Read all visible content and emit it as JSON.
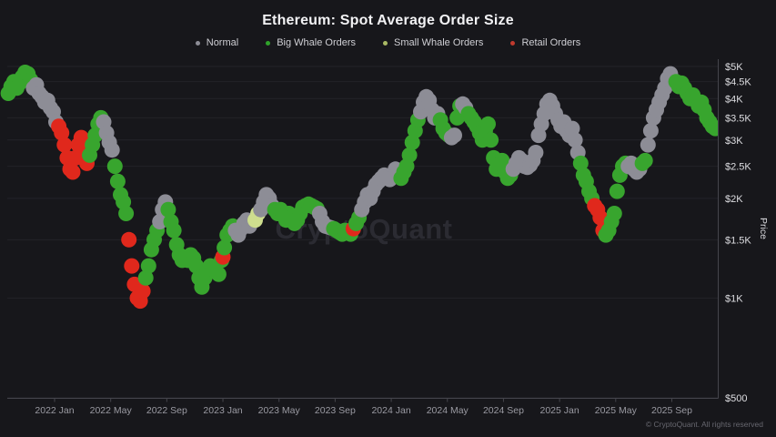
{
  "title": "Ethereum: Spot Average Order Size",
  "watermark": "CryptoQuant",
  "copyright": "© CryptoQuant. All rights reserved",
  "legend": [
    {
      "label": "Normal",
      "color": "#8d8d96"
    },
    {
      "label": "Big Whale Orders",
      "color": "#2fa32a"
    },
    {
      "label": "Small Whale Orders",
      "color": "#a9b964"
    },
    {
      "label": "Retail Orders",
      "color": "#c03a2e"
    }
  ],
  "colors": {
    "background": "#17171b",
    "grid": "#232329",
    "axis": "#45454c",
    "x_tick_text": "#9a9aa2",
    "y_tick_text": "#dedee2",
    "watermark": "#2b2b32"
  },
  "chart_data": {
    "type": "scatter",
    "title": "Ethereum: Spot Average Order Size",
    "x_unit": "months since 2022-01 (0 = Jan 2022)",
    "xlim": [
      -3.5,
      47.5
    ],
    "ylim": [
      500,
      5000
    ],
    "y_scale": "log",
    "grid": "horizontal-only",
    "legend_position": "top-center",
    "x_axis": {
      "ticks": [
        {
          "label": "2022 Jan",
          "t": 0
        },
        {
          "label": "2022 May",
          "t": 4
        },
        {
          "label": "2022 Sep",
          "t": 8
        },
        {
          "label": "2023 Jan",
          "t": 12
        },
        {
          "label": "2023 May",
          "t": 16
        },
        {
          "label": "2023 Sep",
          "t": 20
        },
        {
          "label": "2024 Jan",
          "t": 24
        },
        {
          "label": "2024 May",
          "t": 28
        },
        {
          "label": "2024 Sep",
          "t": 32
        },
        {
          "label": "2025 Jan",
          "t": 36
        },
        {
          "label": "2025 May",
          "t": 40
        },
        {
          "label": "2025 Sep",
          "t": 44
        }
      ]
    },
    "y_axis": {
      "label": "Price",
      "ticks": [
        {
          "label": "$5K",
          "value": 5000
        },
        {
          "label": "$4.5K",
          "value": 4500
        },
        {
          "label": "$4K",
          "value": 4000
        },
        {
          "label": "$3.5K",
          "value": 3500
        },
        {
          "label": "$3K",
          "value": 3000
        },
        {
          "label": "$2.5K",
          "value": 2500
        },
        {
          "label": "$2K",
          "value": 2000
        },
        {
          "label": "$1.5K",
          "value": 1500
        },
        {
          "label": "$1K",
          "value": 1000
        },
        {
          "label": "$500",
          "value": 500
        }
      ]
    },
    "categories": {
      "n": "Normal",
      "b": "Big Whale Orders",
      "s": "Small Whale Orders",
      "r": "Retail Orders"
    },
    "point_colors": {
      "n": "#8d8d96",
      "b": "#38a52e",
      "s": "#cede8e",
      "r": "#e0281c"
    },
    "point_radius": 8.5,
    "points": [
      [
        -3.3,
        4150,
        "b"
      ],
      [
        -3.1,
        4350,
        "b"
      ],
      [
        -2.9,
        4500,
        "b"
      ],
      [
        -2.7,
        4300,
        "b"
      ],
      [
        -2.5,
        4450,
        "b"
      ],
      [
        -2.3,
        4650,
        "b"
      ],
      [
        -2.1,
        4800,
        "b"
      ],
      [
        -1.9,
        4750,
        "b"
      ],
      [
        -1.7,
        4550,
        "b"
      ],
      [
        -1.5,
        4300,
        "n"
      ],
      [
        -1.3,
        4400,
        "n"
      ],
      [
        -1.1,
        4150,
        "n"
      ],
      [
        -0.9,
        4050,
        "n"
      ],
      [
        -0.7,
        3900,
        "n"
      ],
      [
        -0.5,
        3950,
        "n"
      ],
      [
        -0.3,
        3750,
        "n"
      ],
      [
        -0.1,
        3650,
        "n"
      ],
      [
        0.1,
        3400,
        "n"
      ],
      [
        0.3,
        3300,
        "r"
      ],
      [
        0.5,
        3150,
        "r"
      ],
      [
        0.7,
        2900,
        "r"
      ],
      [
        0.9,
        2650,
        "r"
      ],
      [
        1.1,
        2450,
        "r"
      ],
      [
        1.3,
        2400,
        "r"
      ],
      [
        1.5,
        2650,
        "r"
      ],
      [
        1.7,
        2900,
        "r"
      ],
      [
        1.9,
        3050,
        "r"
      ],
      [
        2.1,
        2750,
        "r"
      ],
      [
        2.3,
        2550,
        "r"
      ],
      [
        2.5,
        2700,
        "b"
      ],
      [
        2.7,
        2900,
        "b"
      ],
      [
        2.9,
        3100,
        "b"
      ],
      [
        3.1,
        3350,
        "b"
      ],
      [
        3.3,
        3500,
        "b"
      ],
      [
        3.5,
        3400,
        "n"
      ],
      [
        3.7,
        3150,
        "n"
      ],
      [
        3.9,
        2950,
        "n"
      ],
      [
        4.1,
        2800,
        "n"
      ],
      [
        4.3,
        2500,
        "b"
      ],
      [
        4.5,
        2250,
        "b"
      ],
      [
        4.7,
        2050,
        "b"
      ],
      [
        4.9,
        1950,
        "b"
      ],
      [
        5.1,
        1800,
        "b"
      ],
      [
        5.3,
        1500,
        "r"
      ],
      [
        5.5,
        1250,
        "r"
      ],
      [
        5.7,
        1100,
        "r"
      ],
      [
        5.9,
        1000,
        "r"
      ],
      [
        6.1,
        980,
        "r"
      ],
      [
        6.3,
        1050,
        "r"
      ],
      [
        6.5,
        1150,
        "b"
      ],
      [
        6.7,
        1250,
        "b"
      ],
      [
        6.9,
        1400,
        "b"
      ],
      [
        7.1,
        1500,
        "b"
      ],
      [
        7.3,
        1600,
        "b"
      ],
      [
        7.5,
        1700,
        "n"
      ],
      [
        7.7,
        1850,
        "n"
      ],
      [
        7.9,
        1950,
        "n"
      ],
      [
        8.1,
        1850,
        "b"
      ],
      [
        8.3,
        1700,
        "b"
      ],
      [
        8.5,
        1600,
        "b"
      ],
      [
        8.7,
        1450,
        "b"
      ],
      [
        8.9,
        1350,
        "b"
      ],
      [
        9.1,
        1300,
        "b"
      ],
      [
        9.3,
        1320,
        "b"
      ],
      [
        9.5,
        1300,
        "b"
      ],
      [
        9.7,
        1350,
        "b"
      ],
      [
        9.9,
        1320,
        "b"
      ],
      [
        10.1,
        1250,
        "b"
      ],
      [
        10.3,
        1150,
        "b"
      ],
      [
        10.5,
        1080,
        "b"
      ],
      [
        10.7,
        1150,
        "b"
      ],
      [
        10.9,
        1200,
        "b"
      ],
      [
        11.1,
        1250,
        "b"
      ],
      [
        11.3,
        1220,
        "b"
      ],
      [
        11.5,
        1200,
        "b"
      ],
      [
        11.7,
        1180,
        "b"
      ],
      [
        11.9,
        1300,
        "b"
      ],
      [
        12.0,
        1330,
        "r"
      ],
      [
        12.1,
        1420,
        "b"
      ],
      [
        12.3,
        1550,
        "b"
      ],
      [
        12.5,
        1600,
        "b"
      ],
      [
        12.7,
        1650,
        "b"
      ],
      [
        12.9,
        1600,
        "n"
      ],
      [
        13.1,
        1550,
        "n"
      ],
      [
        13.3,
        1620,
        "n"
      ],
      [
        13.5,
        1680,
        "n"
      ],
      [
        13.7,
        1720,
        "n"
      ],
      [
        13.9,
        1650,
        "n"
      ],
      [
        14.1,
        1700,
        "n"
      ],
      [
        14.3,
        1720,
        "s"
      ],
      [
        14.5,
        1800,
        "s"
      ],
      [
        14.7,
        1850,
        "n"
      ],
      [
        14.9,
        1950,
        "n"
      ],
      [
        15.1,
        2050,
        "n"
      ],
      [
        15.3,
        2000,
        "n"
      ],
      [
        15.5,
        1900,
        "n"
      ],
      [
        15.7,
        1850,
        "b"
      ],
      [
        15.9,
        1800,
        "b"
      ],
      [
        16.1,
        1850,
        "b"
      ],
      [
        16.3,
        1780,
        "b"
      ],
      [
        16.5,
        1720,
        "b"
      ],
      [
        16.7,
        1800,
        "b"
      ],
      [
        16.9,
        1750,
        "b"
      ],
      [
        17.1,
        1680,
        "b"
      ],
      [
        17.3,
        1720,
        "b"
      ],
      [
        17.5,
        1800,
        "b"
      ],
      [
        17.7,
        1880,
        "b"
      ],
      [
        17.9,
        1900,
        "b"
      ],
      [
        18.1,
        1920,
        "b"
      ],
      [
        18.3,
        1900,
        "b"
      ],
      [
        18.5,
        1880,
        "b"
      ],
      [
        18.7,
        1860,
        "b"
      ],
      [
        18.9,
        1800,
        "n"
      ],
      [
        19.1,
        1700,
        "n"
      ],
      [
        19.3,
        1650,
        "n"
      ],
      [
        19.5,
        1640,
        "n"
      ],
      [
        19.7,
        1630,
        "n"
      ],
      [
        19.9,
        1620,
        "b"
      ],
      [
        20.1,
        1600,
        "b"
      ],
      [
        20.3,
        1580,
        "b"
      ],
      [
        20.5,
        1560,
        "b"
      ],
      [
        20.7,
        1600,
        "b"
      ],
      [
        20.9,
        1580,
        "b"
      ],
      [
        21.1,
        1560,
        "b"
      ],
      [
        21.3,
        1620,
        "r"
      ],
      [
        21.5,
        1680,
        "b"
      ],
      [
        21.7,
        1750,
        "b"
      ],
      [
        21.9,
        1850,
        "n"
      ],
      [
        22.1,
        1950,
        "n"
      ],
      [
        22.3,
        2050,
        "n"
      ],
      [
        22.5,
        2000,
        "n"
      ],
      [
        22.7,
        2100,
        "n"
      ],
      [
        22.9,
        2200,
        "n"
      ],
      [
        23.1,
        2250,
        "n"
      ],
      [
        23.3,
        2300,
        "n"
      ],
      [
        23.5,
        2350,
        "n"
      ],
      [
        23.7,
        2300,
        "n"
      ],
      [
        23.9,
        2280,
        "n"
      ],
      [
        24.1,
        2350,
        "n"
      ],
      [
        24.3,
        2450,
        "n"
      ],
      [
        24.5,
        2400,
        "n"
      ],
      [
        24.7,
        2300,
        "b"
      ],
      [
        24.9,
        2400,
        "b"
      ],
      [
        25.1,
        2500,
        "b"
      ],
      [
        25.3,
        2700,
        "b"
      ],
      [
        25.5,
        2950,
        "b"
      ],
      [
        25.7,
        3200,
        "b"
      ],
      [
        25.9,
        3450,
        "b"
      ],
      [
        26.1,
        3650,
        "n"
      ],
      [
        26.3,
        3900,
        "n"
      ],
      [
        26.5,
        4050,
        "n"
      ],
      [
        26.7,
        3950,
        "n"
      ],
      [
        26.9,
        3700,
        "n"
      ],
      [
        27.1,
        3500,
        "n"
      ],
      [
        27.3,
        3600,
        "n"
      ],
      [
        27.5,
        3450,
        "b"
      ],
      [
        27.7,
        3250,
        "b"
      ],
      [
        27.9,
        3150,
        "b"
      ],
      [
        28.1,
        3100,
        "b"
      ],
      [
        28.3,
        3050,
        "n"
      ],
      [
        28.5,
        3100,
        "n"
      ],
      [
        28.7,
        3500,
        "b"
      ],
      [
        28.9,
        3800,
        "b"
      ],
      [
        29.1,
        3850,
        "n"
      ],
      [
        29.3,
        3750,
        "n"
      ],
      [
        29.5,
        3600,
        "b"
      ],
      [
        29.7,
        3500,
        "b"
      ],
      [
        29.9,
        3400,
        "b"
      ],
      [
        30.1,
        3300,
        "b"
      ],
      [
        30.3,
        3150,
        "b"
      ],
      [
        30.5,
        3000,
        "b"
      ],
      [
        30.7,
        3200,
        "b"
      ],
      [
        30.9,
        3350,
        "b"
      ],
      [
        31.1,
        3000,
        "b"
      ],
      [
        31.3,
        2650,
        "b"
      ],
      [
        31.5,
        2450,
        "b"
      ],
      [
        31.7,
        2550,
        "b"
      ],
      [
        31.9,
        2600,
        "b"
      ],
      [
        32.1,
        2400,
        "b"
      ],
      [
        32.3,
        2300,
        "b"
      ],
      [
        32.5,
        2350,
        "b"
      ],
      [
        32.7,
        2450,
        "n"
      ],
      [
        32.9,
        2550,
        "n"
      ],
      [
        33.1,
        2650,
        "n"
      ],
      [
        33.3,
        2600,
        "n"
      ],
      [
        33.5,
        2500,
        "n"
      ],
      [
        33.7,
        2480,
        "n"
      ],
      [
        33.9,
        2520,
        "n"
      ],
      [
        34.1,
        2600,
        "n"
      ],
      [
        34.3,
        2750,
        "n"
      ],
      [
        34.5,
        3100,
        "n"
      ],
      [
        34.7,
        3350,
        "n"
      ],
      [
        34.9,
        3600,
        "n"
      ],
      [
        35.1,
        3850,
        "n"
      ],
      [
        35.3,
        3950,
        "n"
      ],
      [
        35.5,
        3800,
        "n"
      ],
      [
        35.7,
        3600,
        "n"
      ],
      [
        35.9,
        3450,
        "n"
      ],
      [
        36.1,
        3300,
        "n"
      ],
      [
        36.3,
        3400,
        "n"
      ],
      [
        36.5,
        3200,
        "n"
      ],
      [
        36.7,
        3100,
        "n"
      ],
      [
        36.9,
        3250,
        "n"
      ],
      [
        37.1,
        3000,
        "n"
      ],
      [
        37.3,
        2750,
        "n"
      ],
      [
        37.5,
        2550,
        "b"
      ],
      [
        37.7,
        2350,
        "b"
      ],
      [
        37.9,
        2250,
        "b"
      ],
      [
        38.1,
        2100,
        "b"
      ],
      [
        38.3,
        2000,
        "b"
      ],
      [
        38.5,
        1900,
        "r"
      ],
      [
        38.7,
        1850,
        "r"
      ],
      [
        38.9,
        1750,
        "r"
      ],
      [
        39.1,
        1600,
        "r"
      ],
      [
        39.3,
        1550,
        "b"
      ],
      [
        39.5,
        1600,
        "b"
      ],
      [
        39.7,
        1700,
        "b"
      ],
      [
        39.9,
        1800,
        "b"
      ],
      [
        40.1,
        2100,
        "b"
      ],
      [
        40.3,
        2350,
        "b"
      ],
      [
        40.5,
        2500,
        "b"
      ],
      [
        40.7,
        2550,
        "b"
      ],
      [
        40.9,
        2500,
        "n"
      ],
      [
        41.1,
        2550,
        "n"
      ],
      [
        41.3,
        2450,
        "n"
      ],
      [
        41.5,
        2400,
        "n"
      ],
      [
        41.7,
        2450,
        "n"
      ],
      [
        41.9,
        2550,
        "b"
      ],
      [
        42.1,
        2600,
        "b"
      ],
      [
        42.3,
        2900,
        "n"
      ],
      [
        42.5,
        3200,
        "n"
      ],
      [
        42.7,
        3500,
        "n"
      ],
      [
        42.9,
        3700,
        "n"
      ],
      [
        43.1,
        3900,
        "n"
      ],
      [
        43.3,
        4100,
        "n"
      ],
      [
        43.5,
        4300,
        "n"
      ],
      [
        43.7,
        4600,
        "n"
      ],
      [
        43.9,
        4750,
        "n"
      ],
      [
        44.1,
        4550,
        "n"
      ],
      [
        44.3,
        4500,
        "b"
      ],
      [
        44.5,
        4350,
        "b"
      ],
      [
        44.7,
        4450,
        "b"
      ],
      [
        44.9,
        4300,
        "b"
      ],
      [
        45.1,
        4150,
        "b"
      ],
      [
        45.3,
        4000,
        "b"
      ],
      [
        45.5,
        4100,
        "b"
      ],
      [
        45.7,
        3950,
        "b"
      ],
      [
        45.9,
        3800,
        "b"
      ],
      [
        46.1,
        3900,
        "b"
      ],
      [
        46.3,
        3700,
        "b"
      ],
      [
        46.5,
        3500,
        "b"
      ],
      [
        46.7,
        3400,
        "b"
      ],
      [
        46.9,
        3300,
        "b"
      ],
      [
        47.1,
        3250,
        "b"
      ]
    ]
  }
}
